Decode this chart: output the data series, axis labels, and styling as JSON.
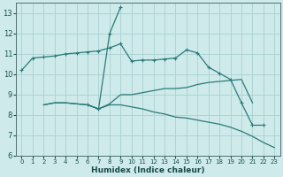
{
  "xlabel": "Humidex (Indice chaleur)",
  "background_color": "#ceeaea",
  "grid_color": "#aad0d0",
  "line_color": "#2a7a7a",
  "xlim": [
    -0.5,
    23.5
  ],
  "ylim": [
    6,
    13.5
  ],
  "yticks": [
    6,
    7,
    8,
    9,
    10,
    11,
    12,
    13
  ],
  "xticks": [
    0,
    1,
    2,
    3,
    4,
    5,
    6,
    7,
    8,
    9,
    10,
    11,
    12,
    13,
    14,
    15,
    16,
    17,
    18,
    19,
    20,
    21,
    22,
    23
  ],
  "lines": [
    {
      "x": [
        0,
        1,
        2,
        3,
        4,
        5,
        6,
        7,
        8,
        9,
        10,
        11,
        12,
        13,
        14,
        15,
        16,
        17,
        18,
        19,
        20,
        21,
        22
      ],
      "y": [
        10.2,
        10.8,
        10.85,
        10.9,
        11.0,
        11.05,
        11.1,
        11.15,
        11.3,
        11.5,
        10.65,
        10.7,
        10.7,
        10.75,
        10.8,
        11.2,
        11.05,
        10.35,
        10.05,
        9.75,
        8.6,
        7.5,
        7.5
      ],
      "marker": "+"
    },
    {
      "x": [
        6,
        7,
        8,
        9
      ],
      "y": [
        8.5,
        8.3,
        12.0,
        13.3
      ],
      "marker": "+"
    },
    {
      "x": [
        2,
        3,
        4,
        5,
        6,
        7,
        8,
        9,
        10,
        11,
        12,
        13,
        14,
        15,
        16,
        17,
        18,
        19,
        20,
        21
      ],
      "y": [
        8.5,
        8.6,
        8.6,
        8.55,
        8.5,
        8.3,
        8.55,
        9.0,
        9.0,
        9.1,
        9.2,
        9.3,
        9.3,
        9.35,
        9.5,
        9.6,
        9.65,
        9.7,
        9.75,
        8.6
      ],
      "marker": null
    },
    {
      "x": [
        2,
        3,
        4,
        5,
        6,
        7,
        8,
        9,
        10,
        11,
        12,
        13,
        14,
        15,
        16,
        17,
        18,
        19,
        20,
        21,
        22,
        23
      ],
      "y": [
        8.5,
        8.6,
        8.6,
        8.55,
        8.5,
        8.3,
        8.5,
        8.5,
        8.4,
        8.3,
        8.15,
        8.05,
        7.9,
        7.85,
        7.75,
        7.65,
        7.55,
        7.4,
        7.2,
        6.95,
        6.65,
        6.4
      ],
      "marker": null
    }
  ]
}
